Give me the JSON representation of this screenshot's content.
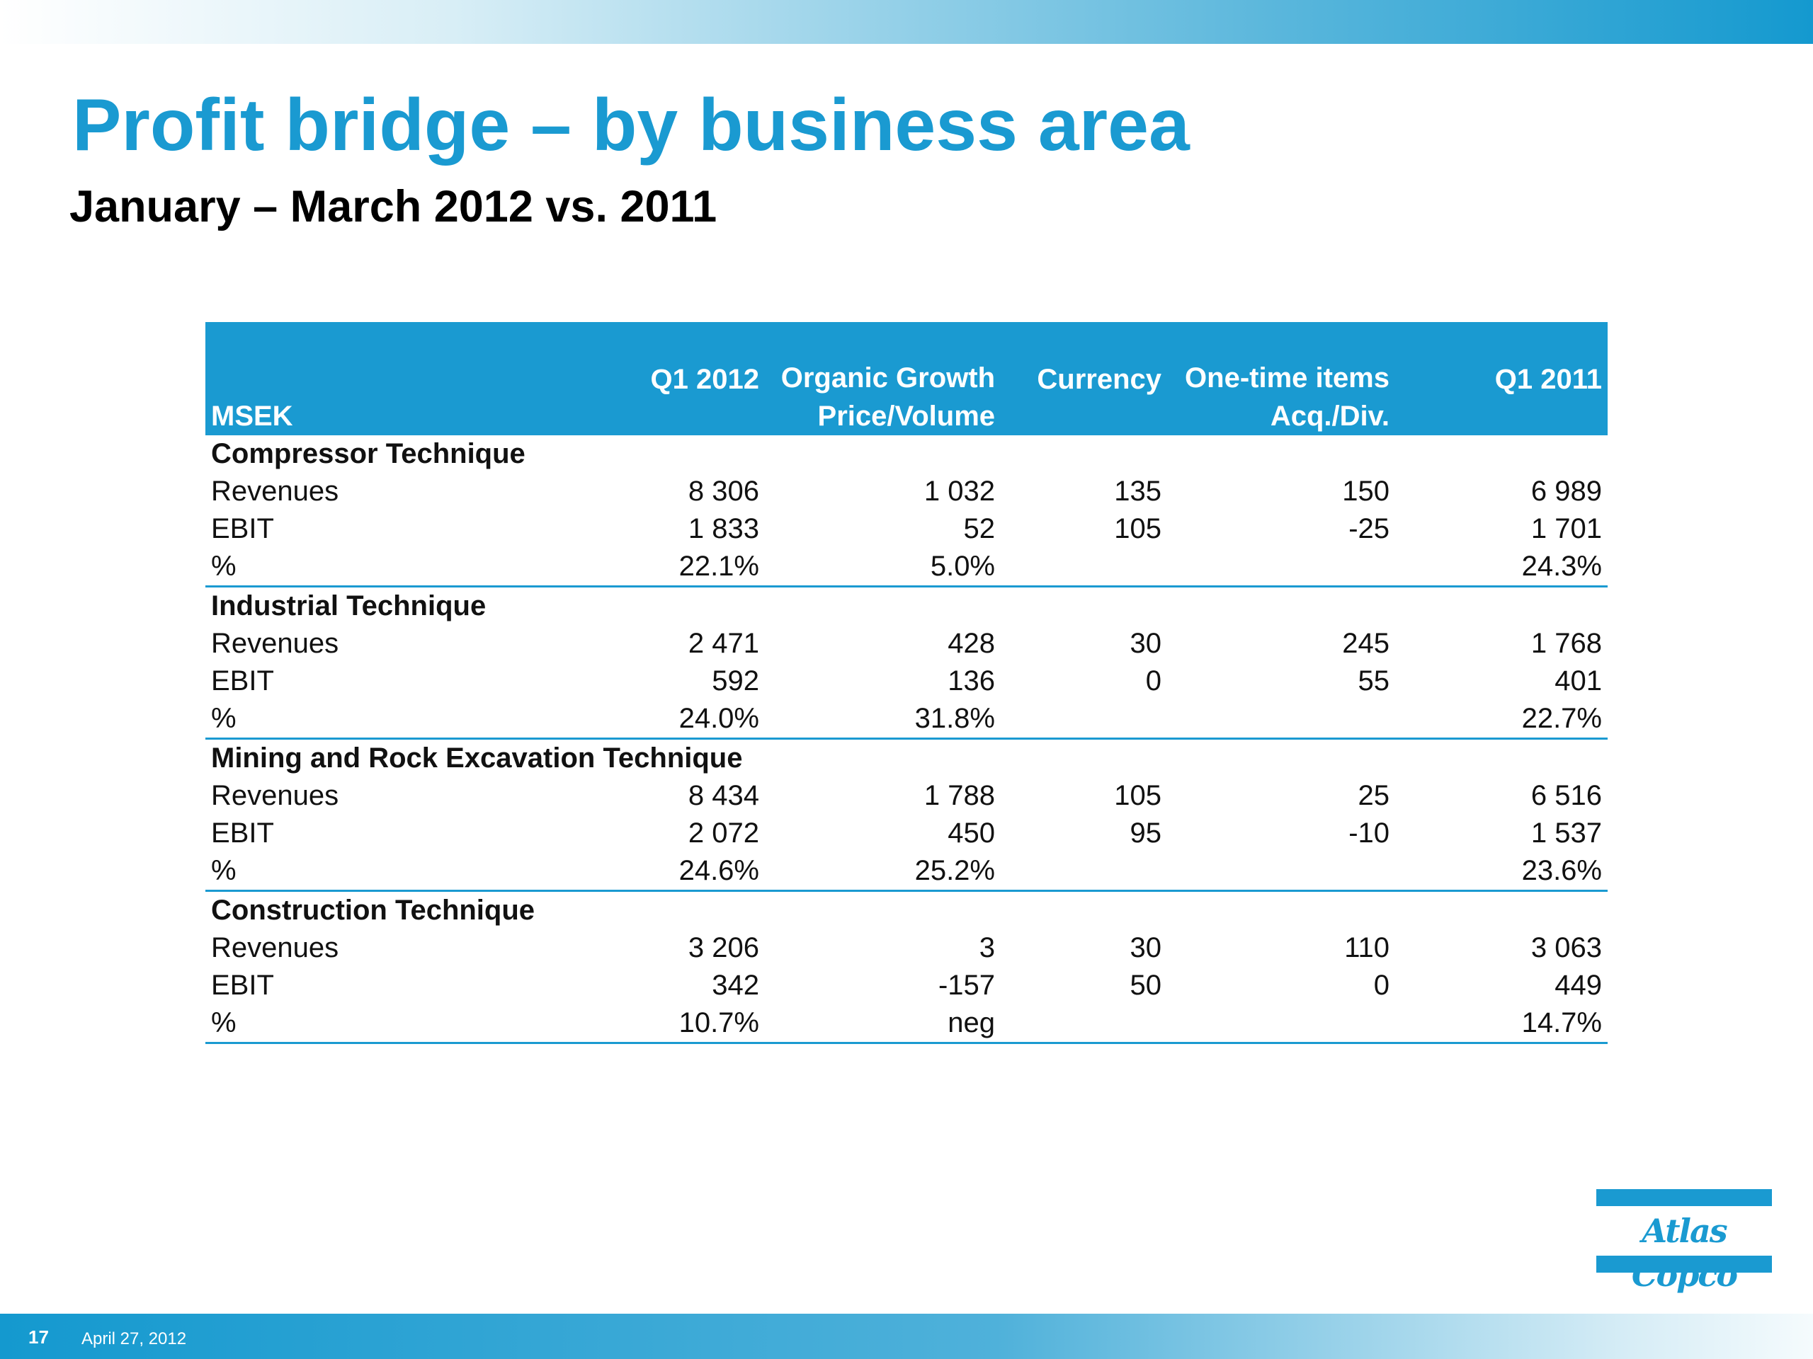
{
  "slide": {
    "title": "Profit bridge – by business area",
    "subtitle": "January – March 2012 vs. 2011"
  },
  "table": {
    "header": {
      "label": "MSEK",
      "col1": "Q1 2012",
      "col2_line1": "Organic Growth",
      "col2_line2": "Price/Volume",
      "col3": "Currency",
      "col4_line1": "One-time items",
      "col4_line2": "Acq./Div.",
      "col5": "Q1 2011"
    },
    "groups": [
      {
        "name": "Compressor Technique",
        "rows": [
          {
            "label": "Revenues",
            "q1_2012": "8 306",
            "organic": "1 032",
            "currency": "135",
            "onetime": "150",
            "q1_2011": "6 989"
          },
          {
            "label": "EBIT",
            "q1_2012": "1 833",
            "organic": "52",
            "currency": "105",
            "onetime": "-25",
            "q1_2011": "1 701"
          },
          {
            "label": "%",
            "q1_2012": "22.1%",
            "organic": "5.0%",
            "currency": "",
            "onetime": "",
            "q1_2011": "24.3%"
          }
        ]
      },
      {
        "name": "Industrial Technique",
        "rows": [
          {
            "label": "Revenues",
            "q1_2012": "2 471",
            "organic": "428",
            "currency": "30",
            "onetime": "245",
            "q1_2011": "1 768"
          },
          {
            "label": "EBIT",
            "q1_2012": "592",
            "organic": "136",
            "currency": "0",
            "onetime": "55",
            "q1_2011": "401"
          },
          {
            "label": "%",
            "q1_2012": "24.0%",
            "organic": "31.8%",
            "currency": "",
            "onetime": "",
            "q1_2011": "22.7%"
          }
        ]
      },
      {
        "name": "Mining and Rock Excavation Technique",
        "rows": [
          {
            "label": "Revenues",
            "q1_2012": "8 434",
            "organic": "1 788",
            "currency": "105",
            "onetime": "25",
            "q1_2011": "6 516"
          },
          {
            "label": "EBIT",
            "q1_2012": "2 072",
            "organic": "450",
            "currency": "95",
            "onetime": "-10",
            "q1_2011": "1 537"
          },
          {
            "label": "%",
            "q1_2012": "24.6%",
            "organic": "25.2%",
            "currency": "",
            "onetime": "",
            "q1_2011": "23.6%"
          }
        ]
      },
      {
        "name": "Construction Technique",
        "rows": [
          {
            "label": "Revenues",
            "q1_2012": "3 206",
            "organic": "3",
            "currency": "30",
            "onetime": "110",
            "q1_2011": "3 063"
          },
          {
            "label": "EBIT",
            "q1_2012": "342",
            "organic": "-157",
            "currency": "50",
            "onetime": "0",
            "q1_2011": "449"
          },
          {
            "label": "%",
            "q1_2012": "10.7%",
            "organic": "neg",
            "currency": "",
            "onetime": "",
            "q1_2011": "14.7%"
          }
        ]
      }
    ]
  },
  "logo": {
    "text": "Atlas Copco"
  },
  "footer": {
    "page": "17",
    "date": "April 27, 2012"
  },
  "colors": {
    "accent": "#1a9ad1",
    "title": "#1a9ad1",
    "text": "#111111"
  }
}
